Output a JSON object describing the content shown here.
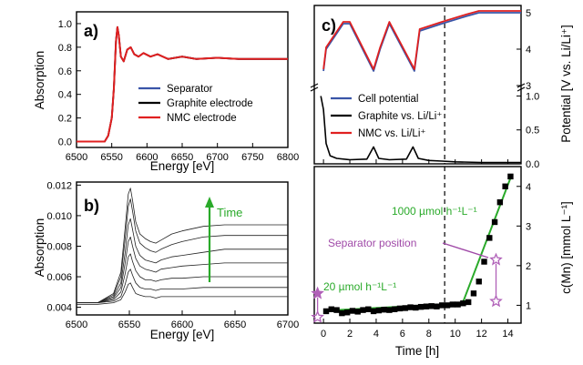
{
  "figure": {
    "panels": {
      "a": {
        "label": "a)",
        "xlabel": "Energy [eV]",
        "ylabel": "Absorption",
        "xlim": [
          6500,
          6800
        ],
        "ylim": [
          -0.05,
          1.1
        ],
        "xticks": [
          "6500",
          "6550",
          "6600",
          "6650",
          "6700",
          "6750",
          "6800"
        ],
        "yticks": [
          "0.0",
          "0.2",
          "0.4",
          "0.6",
          "0.8",
          "1.0"
        ],
        "legend": [
          "Separator",
          "Graphite electrode",
          "NMC electrode"
        ]
      },
      "b": {
        "label": "b)",
        "xlabel": "Energy [eV]",
        "ylabel": "Absorption",
        "xlim": [
          6500,
          6700
        ],
        "ylim": [
          0.0035,
          0.0122
        ],
        "xticks": [
          "6500",
          "6550",
          "6600",
          "6650",
          "6700"
        ],
        "yticks": [
          "0.004",
          "0.006",
          "0.008",
          "0.010",
          "0.012"
        ],
        "annotation": "Time"
      },
      "c": {
        "label": "c)",
        "xlabel": "Time [h]",
        "ylabel_top": "Potential [V vs. Li/Li⁺]",
        "ylabel_bottom": "c(Mn) [mmol L⁻¹]",
        "xlim": [
          -0.7,
          15
        ],
        "xticks": [
          "0",
          "2",
          "4",
          "6",
          "8",
          "10",
          "12",
          "14"
        ],
        "top_yticks_upper": [
          "3",
          "4",
          "5"
        ],
        "top_yticks_lower": [
          "0.0",
          "0.5",
          "1.0"
        ],
        "bottom_yticks": [
          "1",
          "2",
          "3",
          "4"
        ],
        "legend": [
          "Cell potential",
          "Graphite vs. Li/Li⁺",
          "NMC vs. Li/Li⁺"
        ],
        "annotation_fast": "1000 µmol h⁻¹L⁻¹",
        "annotation_slow": "20 µmol h⁻¹L⁻¹",
        "annotation_sep": "Separator position"
      }
    }
  },
  "chart_data": [
    {
      "type": "line",
      "panel": "a",
      "xlabel": "Energy [eV]",
      "ylabel": "Absorption",
      "x_range": [
        6500,
        6800
      ],
      "y_range": [
        0.0,
        1.1
      ],
      "series": [
        {
          "name": "Separator",
          "color": "#3a55a8",
          "x": [
            6500,
            6540,
            6545,
            6550,
            6553,
            6556,
            6558,
            6560,
            6563,
            6567,
            6572,
            6577,
            6582,
            6588,
            6595,
            6605,
            6615,
            6630,
            6650,
            6670,
            6700,
            6730,
            6760,
            6800
          ],
          "y": [
            0.0,
            0.0,
            0.05,
            0.2,
            0.45,
            0.85,
            0.97,
            0.9,
            0.72,
            0.68,
            0.78,
            0.8,
            0.74,
            0.72,
            0.75,
            0.72,
            0.74,
            0.7,
            0.72,
            0.7,
            0.71,
            0.7,
            0.7,
            0.7
          ]
        },
        {
          "name": "Graphite electrode",
          "color": "#000000",
          "x": [
            6500,
            6540,
            6545,
            6550,
            6553,
            6556,
            6558,
            6560,
            6563,
            6567,
            6572,
            6577,
            6582,
            6588,
            6595,
            6605,
            6615,
            6630,
            6650,
            6670,
            6700,
            6730,
            6760,
            6800
          ],
          "y": [
            0.0,
            0.0,
            0.05,
            0.2,
            0.45,
            0.85,
            0.97,
            0.9,
            0.72,
            0.68,
            0.78,
            0.8,
            0.74,
            0.72,
            0.75,
            0.72,
            0.74,
            0.7,
            0.72,
            0.7,
            0.71,
            0.7,
            0.7,
            0.7
          ]
        },
        {
          "name": "NMC electrode",
          "color": "#e02020",
          "x": [
            6500,
            6540,
            6545,
            6550,
            6553,
            6556,
            6558,
            6560,
            6563,
            6567,
            6572,
            6577,
            6582,
            6588,
            6595,
            6605,
            6615,
            6630,
            6650,
            6670,
            6700,
            6730,
            6760,
            6800
          ],
          "y": [
            0.0,
            0.0,
            0.05,
            0.2,
            0.45,
            0.85,
            0.97,
            0.9,
            0.72,
            0.68,
            0.78,
            0.8,
            0.74,
            0.72,
            0.75,
            0.72,
            0.74,
            0.7,
            0.72,
            0.7,
            0.71,
            0.7,
            0.7,
            0.7
          ]
        }
      ]
    },
    {
      "type": "line",
      "panel": "b",
      "xlabel": "Energy [eV]",
      "ylabel": "Absorption",
      "x_range": [
        6500,
        6700
      ],
      "y_range": [
        0.004,
        0.012
      ],
      "x": [
        6500,
        6520,
        6535,
        6542,
        6546,
        6549,
        6551,
        6553,
        6556,
        6560,
        6565,
        6570,
        6575,
        6580,
        6590,
        6600,
        6620,
        6640,
        6660,
        6680,
        6700
      ],
      "series": [
        {
          "values": [
            0.0042,
            0.0042,
            0.0043,
            0.0045,
            0.005,
            0.0055,
            0.0056,
            0.0053,
            0.0049,
            0.0048,
            0.0047,
            0.0047,
            0.0046,
            0.0047,
            0.0047,
            0.0047,
            0.0047,
            0.0047,
            0.0047,
            0.0047,
            0.0047
          ]
        },
        {
          "values": [
            0.0043,
            0.0043,
            0.0044,
            0.0047,
            0.0055,
            0.0063,
            0.0065,
            0.0061,
            0.0056,
            0.0053,
            0.0052,
            0.0052,
            0.0051,
            0.0052,
            0.0052,
            0.0052,
            0.0053,
            0.0053,
            0.0053,
            0.0053,
            0.0053
          ]
        },
        {
          "values": [
            0.0043,
            0.0043,
            0.0045,
            0.005,
            0.0062,
            0.0073,
            0.0075,
            0.007,
            0.0064,
            0.006,
            0.0058,
            0.0058,
            0.0057,
            0.0058,
            0.0059,
            0.0059,
            0.006,
            0.006,
            0.006,
            0.006,
            0.006
          ]
        },
        {
          "values": [
            0.0043,
            0.0043,
            0.0046,
            0.0053,
            0.0069,
            0.0083,
            0.0086,
            0.008,
            0.0072,
            0.0067,
            0.0065,
            0.0064,
            0.0063,
            0.0065,
            0.0066,
            0.0067,
            0.0068,
            0.0069,
            0.0069,
            0.0069,
            0.0069
          ]
        },
        {
          "values": [
            0.0043,
            0.0043,
            0.0047,
            0.0056,
            0.0076,
            0.0094,
            0.0098,
            0.0091,
            0.008,
            0.0074,
            0.0071,
            0.007,
            0.0069,
            0.0071,
            0.0073,
            0.0074,
            0.0076,
            0.0078,
            0.0078,
            0.0078,
            0.0078
          ]
        },
        {
          "values": [
            0.0043,
            0.0043,
            0.0048,
            0.006,
            0.0085,
            0.0106,
            0.0111,
            0.0103,
            0.009,
            0.0082,
            0.0079,
            0.0077,
            0.0076,
            0.0078,
            0.0081,
            0.0083,
            0.0086,
            0.0087,
            0.0087,
            0.0087,
            0.0087
          ]
        },
        {
          "values": [
            0.0043,
            0.0043,
            0.0049,
            0.0063,
            0.0092,
            0.0114,
            0.0118,
            0.011,
            0.0096,
            0.0088,
            0.0085,
            0.0083,
            0.0082,
            0.0084,
            0.0088,
            0.009,
            0.0093,
            0.0094,
            0.0094,
            0.0094,
            0.0094
          ]
        }
      ]
    },
    {
      "type": "line",
      "panel": "c-top",
      "xlabel": "Time [h]",
      "ylabel": "Potential [V vs. Li/Li⁺]",
      "x_range": [
        -0.7,
        15
      ],
      "y_range_upper": [
        3,
        5
      ],
      "y_range_lower": [
        0,
        1.1
      ],
      "vline": 9.2,
      "series": [
        {
          "name": "Cell potential",
          "color": "#3a55a8",
          "x": [
            0,
            0.2,
            1.5,
            2.0,
            3.8,
            4.3,
            5.0,
            6.9,
            7.3,
            9.0,
            10.8,
            11.8,
            15
          ],
          "y": [
            3.4,
            4.0,
            4.7,
            4.7,
            3.4,
            4.0,
            4.7,
            3.4,
            4.5,
            4.7,
            4.9,
            5.0,
            5.0
          ]
        },
        {
          "name": "Graphite vs. Li/Li⁺",
          "color": "#000000",
          "x": [
            -0.2,
            0,
            0.2,
            0.5,
            1,
            2,
            3.3,
            3.8,
            4.2,
            5,
            6.3,
            6.8,
            7.2,
            8,
            9,
            10,
            12,
            15
          ],
          "y": [
            1.0,
            0.8,
            0.3,
            0.12,
            0.08,
            0.06,
            0.07,
            0.25,
            0.08,
            0.06,
            0.07,
            0.25,
            0.08,
            0.05,
            0.04,
            0.03,
            0.02,
            0.02
          ]
        },
        {
          "name": "NMC vs. Li/Li⁺",
          "color": "#e02020",
          "x": [
            0,
            0.2,
            1.5,
            2.0,
            3.8,
            4.3,
            5.0,
            6.9,
            7.3,
            9.0,
            10.8,
            11.8,
            15
          ],
          "y": [
            3.45,
            4.05,
            4.75,
            4.75,
            3.45,
            4.05,
            4.75,
            3.45,
            4.55,
            4.75,
            4.95,
            5.05,
            5.05
          ]
        }
      ]
    },
    {
      "type": "scatter",
      "panel": "c-bottom",
      "xlabel": "Time [h]",
      "ylabel": "c(Mn) [mmol L⁻¹]",
      "x_range": [
        -0.7,
        15
      ],
      "y_range": [
        0.55,
        4.5
      ],
      "vline": 9.2,
      "x": [
        0.2,
        0.6,
        1,
        1.4,
        1.8,
        2.2,
        2.6,
        3,
        3.4,
        3.8,
        4.2,
        4.6,
        5,
        5.4,
        5.8,
        6.2,
        6.6,
        7,
        7.4,
        7.8,
        8.2,
        8.6,
        9,
        9.4,
        9.8,
        10.2,
        10.6,
        11,
        11.4,
        11.8,
        12.2,
        12.6,
        13,
        13.4,
        13.8,
        14.2
      ],
      "values": [
        0.85,
        0.9,
        0.88,
        0.8,
        0.82,
        0.86,
        0.84,
        0.88,
        0.9,
        0.85,
        0.87,
        0.89,
        0.88,
        0.9,
        0.92,
        0.93,
        0.95,
        0.94,
        0.96,
        0.97,
        0.98,
        0.97,
        1.0,
        1.0,
        1.02,
        1.02,
        1.05,
        1.08,
        1.3,
        1.6,
        2.1,
        2.7,
        3.1,
        3.6,
        4.0,
        4.25
      ],
      "fits": [
        {
          "label": "20 µmol h⁻¹L⁻¹",
          "color": "#2aaa2a",
          "x": [
            0,
            10.5
          ],
          "y": [
            0.86,
            1.05
          ]
        },
        {
          "label": "1000 µmol h⁻¹L⁻¹",
          "color": "#2aaa2a",
          "x": [
            10.5,
            14.3
          ],
          "y": [
            1.0,
            4.3
          ]
        }
      ],
      "separator_markers": [
        {
          "x": -0.45,
          "y": 1.3
        },
        {
          "x": -0.45,
          "y": 0.7
        },
        {
          "x": 13.1,
          "y": 2.15
        },
        {
          "x": 13.1,
          "y": 1.1
        }
      ]
    }
  ]
}
